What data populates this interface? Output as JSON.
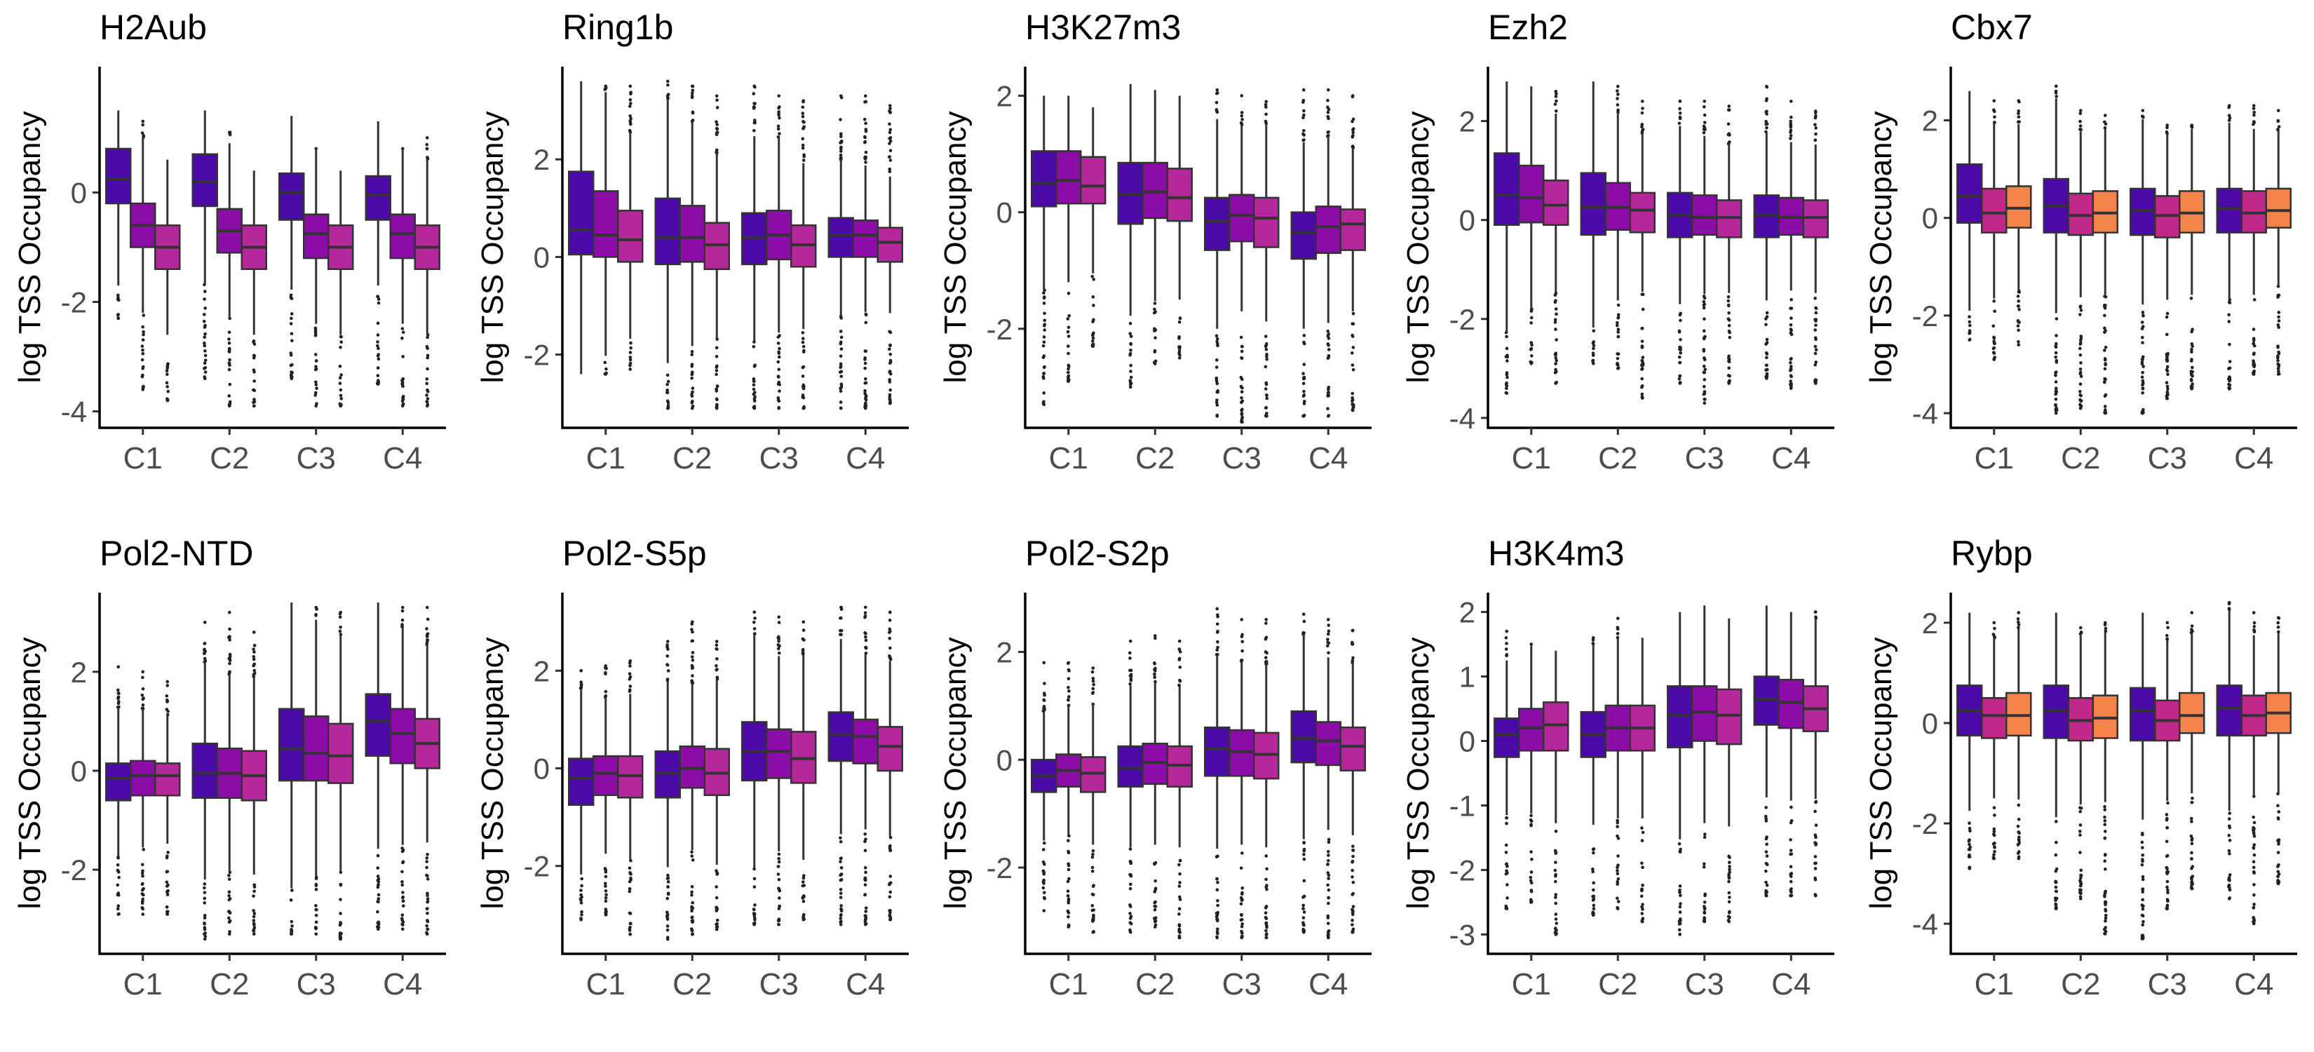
{
  "chart_data": [
    {
      "type": "box",
      "title": "H2Aub",
      "ylabel": "log TSS Occupancy",
      "ylim": [
        -4.3,
        2.3
      ],
      "yticks": [
        -4,
        -2,
        0
      ],
      "categories": [
        "C1",
        "C2",
        "C3",
        "C4"
      ],
      "box_colors": [
        "#4b0aa8",
        "#8c0ca8",
        "#b5289b"
      ],
      "boxes": [
        [
          [
            -2.3,
            -0.2,
            0.25,
            0.8,
            1.5
          ],
          [
            -3.6,
            -1.0,
            -0.6,
            -0.2,
            1.3
          ],
          [
            -3.8,
            -1.4,
            -1.0,
            -0.6,
            0.6
          ]
        ],
        [
          [
            -3.4,
            -0.25,
            0.2,
            0.7,
            1.5
          ],
          [
            -3.9,
            -1.1,
            -0.7,
            -0.3,
            1.1
          ],
          [
            -3.9,
            -1.4,
            -1.0,
            -0.6,
            0.4
          ]
        ],
        [
          [
            -3.4,
            -0.5,
            0.0,
            0.35,
            1.4
          ],
          [
            -3.9,
            -1.2,
            -0.75,
            -0.4,
            0.8
          ],
          [
            -3.9,
            -1.4,
            -1.0,
            -0.6,
            0.4
          ]
        ],
        [
          [
            -3.5,
            -0.5,
            -0.05,
            0.3,
            1.3
          ],
          [
            -3.9,
            -1.2,
            -0.75,
            -0.4,
            0.8
          ],
          [
            -3.9,
            -1.4,
            -1.0,
            -0.6,
            1.0
          ]
        ]
      ]
    },
    {
      "type": "box",
      "title": "Ring1b",
      "ylabel": "log TSS Occupancy",
      "ylim": [
        -3.5,
        3.9
      ],
      "yticks": [
        -2,
        0,
        2
      ],
      "categories": [
        "C1",
        "C2",
        "C3",
        "C4"
      ],
      "box_colors": [
        "#4b0aa8",
        "#8c0ca8",
        "#b5289b"
      ],
      "boxes": [
        [
          [
            -2.4,
            0.05,
            0.55,
            1.75,
            3.6
          ],
          [
            -2.4,
            0.0,
            0.45,
            1.35,
            3.5
          ],
          [
            -2.3,
            -0.1,
            0.35,
            0.95,
            3.5
          ]
        ],
        [
          [
            -3.1,
            -0.15,
            0.4,
            1.2,
            3.6
          ],
          [
            -3.1,
            -0.1,
            0.4,
            1.05,
            3.5
          ],
          [
            -3.1,
            -0.25,
            0.25,
            0.7,
            3.3
          ]
        ],
        [
          [
            -3.1,
            -0.15,
            0.4,
            0.9,
            3.5
          ],
          [
            -3.1,
            -0.05,
            0.45,
            0.95,
            3.3
          ],
          [
            -3.1,
            -0.2,
            0.25,
            0.65,
            3.2
          ]
        ],
        [
          [
            -3.1,
            0.0,
            0.45,
            0.8,
            3.3
          ],
          [
            -3.1,
            0.0,
            0.45,
            0.75,
            3.3
          ],
          [
            -3.0,
            -0.1,
            0.3,
            0.6,
            3.1
          ]
        ]
      ]
    },
    {
      "type": "box",
      "title": "H3K27m3",
      "ylabel": "log TSS Occupancy",
      "ylim": [
        -3.7,
        2.5
      ],
      "yticks": [
        -2,
        0,
        2
      ],
      "categories": [
        "C1",
        "C2",
        "C3",
        "C4"
      ],
      "box_colors": [
        "#4b0aa8",
        "#8c0ca8",
        "#b5289b"
      ],
      "boxes": [
        [
          [
            -3.3,
            0.1,
            0.5,
            1.05,
            2.0
          ],
          [
            -2.9,
            0.15,
            0.55,
            1.05,
            2.0
          ],
          [
            -2.3,
            0.15,
            0.45,
            0.95,
            1.8
          ]
        ],
        [
          [
            -3.0,
            -0.2,
            0.3,
            0.85,
            2.2
          ],
          [
            -2.6,
            -0.1,
            0.35,
            0.85,
            2.1
          ],
          [
            -2.5,
            -0.15,
            0.25,
            0.75,
            2.0
          ]
        ],
        [
          [
            -3.5,
            -0.65,
            -0.15,
            0.25,
            2.1
          ],
          [
            -3.6,
            -0.5,
            -0.05,
            0.3,
            2.0
          ],
          [
            -3.5,
            -0.6,
            -0.1,
            0.25,
            1.9
          ]
        ],
        [
          [
            -3.5,
            -0.8,
            -0.35,
            0.0,
            2.1
          ],
          [
            -3.5,
            -0.7,
            -0.25,
            0.1,
            2.1
          ],
          [
            -3.4,
            -0.65,
            -0.2,
            0.05,
            2.0
          ]
        ]
      ]
    },
    {
      "type": "box",
      "title": "Ezh2",
      "ylabel": "log TSS Occupancy",
      "ylim": [
        -4.2,
        3.1
      ],
      "yticks": [
        -4,
        -2,
        0,
        2
      ],
      "categories": [
        "C1",
        "C2",
        "C3",
        "C4"
      ],
      "box_colors": [
        "#4b0aa8",
        "#8c0ca8",
        "#b5289b"
      ],
      "boxes": [
        [
          [
            -3.5,
            -0.1,
            0.5,
            1.35,
            2.8
          ],
          [
            -2.9,
            -0.05,
            0.45,
            1.1,
            2.7
          ],
          [
            -3.3,
            -0.1,
            0.3,
            0.8,
            2.6
          ]
        ],
        [
          [
            -2.9,
            -0.3,
            0.25,
            0.95,
            2.8
          ],
          [
            -3.0,
            -0.2,
            0.25,
            0.75,
            2.7
          ],
          [
            -3.6,
            -0.25,
            0.2,
            0.55,
            2.4
          ]
        ],
        [
          [
            -3.3,
            -0.35,
            0.1,
            0.55,
            2.4
          ],
          [
            -3.7,
            -0.3,
            0.05,
            0.5,
            2.4
          ],
          [
            -3.3,
            -0.35,
            0.05,
            0.4,
            2.3
          ]
        ],
        [
          [
            -3.2,
            -0.35,
            0.1,
            0.5,
            2.7
          ],
          [
            -3.4,
            -0.3,
            0.05,
            0.45,
            2.4
          ],
          [
            -3.3,
            -0.35,
            0.05,
            0.4,
            2.2
          ]
        ]
      ]
    },
    {
      "type": "box",
      "title": "Cbx7",
      "ylabel": "log TSS Occupancy",
      "ylim": [
        -4.3,
        3.1
      ],
      "yticks": [
        -4,
        -2,
        0,
        2
      ],
      "categories": [
        "C1",
        "C2",
        "C3",
        "C4"
      ],
      "box_colors": [
        "#4b0aa8",
        "#c0288a",
        "#f4844a"
      ],
      "boxes": [
        [
          [
            -2.5,
            -0.1,
            0.45,
            1.1,
            2.6
          ],
          [
            -2.9,
            -0.3,
            0.1,
            0.6,
            2.4
          ],
          [
            -2.6,
            -0.2,
            0.2,
            0.65,
            2.4
          ]
        ],
        [
          [
            -4.0,
            -0.3,
            0.25,
            0.8,
            2.7
          ],
          [
            -3.9,
            -0.35,
            0.05,
            0.5,
            2.2
          ],
          [
            -4.0,
            -0.3,
            0.1,
            0.55,
            2.1
          ]
        ],
        [
          [
            -4.0,
            -0.35,
            0.15,
            0.6,
            2.2
          ],
          [
            -3.7,
            -0.4,
            0.05,
            0.45,
            1.9
          ],
          [
            -3.5,
            -0.3,
            0.1,
            0.55,
            1.9
          ]
        ],
        [
          [
            -3.5,
            -0.3,
            0.2,
            0.6,
            2.3
          ],
          [
            -3.2,
            -0.3,
            0.1,
            0.55,
            2.3
          ],
          [
            -3.2,
            -0.2,
            0.15,
            0.6,
            2.2
          ]
        ]
      ]
    },
    {
      "type": "box",
      "title": "Pol2-NTD",
      "ylabel": "log TSS Occupancy",
      "ylim": [
        -3.7,
        3.6
      ],
      "yticks": [
        -2,
        0,
        2
      ],
      "categories": [
        "C1",
        "C2",
        "C3",
        "C4"
      ],
      "box_colors": [
        "#4b0aa8",
        "#8c0ca8",
        "#b5289b"
      ],
      "boxes": [
        [
          [
            -2.9,
            -0.6,
            -0.15,
            0.15,
            2.1
          ],
          [
            -2.9,
            -0.5,
            -0.1,
            0.2,
            2.0
          ],
          [
            -2.9,
            -0.5,
            -0.1,
            0.15,
            1.8
          ]
        ],
        [
          [
            -3.4,
            -0.55,
            -0.05,
            0.55,
            3.0
          ],
          [
            -3.3,
            -0.55,
            -0.05,
            0.45,
            3.2
          ],
          [
            -3.3,
            -0.6,
            -0.1,
            0.4,
            2.8
          ]
        ],
        [
          [
            -3.3,
            -0.2,
            0.45,
            1.25,
            3.4
          ],
          [
            -3.3,
            -0.2,
            0.35,
            1.1,
            3.3
          ],
          [
            -3.4,
            -0.25,
            0.3,
            0.95,
            3.2
          ]
        ],
        [
          [
            -3.2,
            0.3,
            1.0,
            1.55,
            3.4
          ],
          [
            -3.2,
            0.15,
            0.75,
            1.25,
            3.3
          ],
          [
            -3.3,
            0.05,
            0.55,
            1.05,
            3.3
          ]
        ]
      ]
    },
    {
      "type": "box",
      "title": "Pol2-S5p",
      "ylabel": "log TSS Occupancy",
      "ylim": [
        -3.8,
        3.6
      ],
      "yticks": [
        -2,
        0,
        2
      ],
      "categories": [
        "C1",
        "C2",
        "C3",
        "C4"
      ],
      "box_colors": [
        "#4b0aa8",
        "#8c0ca8",
        "#b5289b"
      ],
      "boxes": [
        [
          [
            -3.1,
            -0.75,
            -0.2,
            0.2,
            2.0
          ],
          [
            -3.0,
            -0.55,
            -0.1,
            0.25,
            2.1
          ],
          [
            -3.4,
            -0.6,
            -0.15,
            0.25,
            2.2
          ]
        ],
        [
          [
            -3.5,
            -0.6,
            -0.1,
            0.35,
            2.6
          ],
          [
            -3.4,
            -0.4,
            0.0,
            0.45,
            3.0
          ],
          [
            -3.3,
            -0.55,
            -0.1,
            0.4,
            2.6
          ]
        ],
        [
          [
            -3.2,
            -0.25,
            0.35,
            0.95,
            3.2
          ],
          [
            -3.2,
            -0.2,
            0.35,
            0.8,
            3.1
          ],
          [
            -3.1,
            -0.3,
            0.2,
            0.75,
            3.0
          ]
        ],
        [
          [
            -3.2,
            0.15,
            0.7,
            1.15,
            3.3
          ],
          [
            -3.2,
            0.1,
            0.65,
            1.0,
            3.3
          ],
          [
            -3.1,
            -0.05,
            0.45,
            0.85,
            3.2
          ]
        ]
      ]
    },
    {
      "type": "box",
      "title": "Pol2-S2p",
      "ylabel": "log TSS Occupancy",
      "ylim": [
        -3.6,
        3.1
      ],
      "yticks": [
        -2,
        0,
        2
      ],
      "categories": [
        "C1",
        "C2",
        "C3",
        "C4"
      ],
      "box_colors": [
        "#4b0aa8",
        "#8c0ca8",
        "#b5289b"
      ],
      "boxes": [
        [
          [
            -2.8,
            -0.6,
            -0.3,
            0.0,
            1.8
          ],
          [
            -3.1,
            -0.5,
            -0.2,
            0.1,
            1.8
          ],
          [
            -3.2,
            -0.6,
            -0.25,
            0.05,
            1.7
          ]
        ],
        [
          [
            -3.2,
            -0.5,
            -0.15,
            0.25,
            2.2
          ],
          [
            -3.1,
            -0.45,
            -0.05,
            0.3,
            2.3
          ],
          [
            -3.3,
            -0.5,
            -0.1,
            0.25,
            2.2
          ]
        ],
        [
          [
            -3.3,
            -0.3,
            0.2,
            0.6,
            2.8
          ],
          [
            -3.3,
            -0.3,
            0.15,
            0.55,
            2.6
          ],
          [
            -3.3,
            -0.35,
            0.1,
            0.5,
            2.6
          ]
        ],
        [
          [
            -3.2,
            -0.05,
            0.4,
            0.9,
            2.7
          ],
          [
            -3.3,
            -0.1,
            0.35,
            0.7,
            2.6
          ],
          [
            -3.2,
            -0.2,
            0.25,
            0.6,
            2.4
          ]
        ]
      ]
    },
    {
      "type": "box",
      "title": "H3K4m3",
      "ylabel": "log TSS Occupancy",
      "ylim": [
        -3.3,
        2.3
      ],
      "yticks": [
        -3,
        -2,
        -1,
        0,
        1,
        2
      ],
      "categories": [
        "C1",
        "C2",
        "C3",
        "C4"
      ],
      "box_colors": [
        "#4b0aa8",
        "#8c0ca8",
        "#b5289b"
      ],
      "boxes": [
        [
          [
            -2.6,
            -0.25,
            0.1,
            0.35,
            1.7
          ],
          [
            -2.5,
            -0.15,
            0.2,
            0.5,
            1.5
          ],
          [
            -3.0,
            -0.15,
            0.25,
            0.6,
            1.4
          ]
        ],
        [
          [
            -2.7,
            -0.25,
            0.1,
            0.45,
            1.6
          ],
          [
            -2.6,
            -0.15,
            0.2,
            0.55,
            1.9
          ],
          [
            -2.8,
            -0.15,
            0.2,
            0.55,
            1.6
          ]
        ],
        [
          [
            -3.0,
            -0.1,
            0.4,
            0.85,
            2.0
          ],
          [
            -2.8,
            0.0,
            0.45,
            0.85,
            2.1
          ],
          [
            -2.8,
            -0.05,
            0.4,
            0.8,
            1.9
          ]
        ],
        [
          [
            -2.4,
            0.25,
            0.65,
            1.0,
            2.1
          ],
          [
            -2.4,
            0.2,
            0.6,
            0.95,
            2.0
          ],
          [
            -2.4,
            0.15,
            0.5,
            0.85,
            2.0
          ]
        ]
      ]
    },
    {
      "type": "box",
      "title": "Rybp",
      "ylabel": "log TSS Occupancy",
      "ylim": [
        -4.6,
        2.6
      ],
      "yticks": [
        -4,
        -2,
        0,
        2
      ],
      "categories": [
        "C1",
        "C2",
        "C3",
        "C4"
      ],
      "box_colors": [
        "#4b0aa8",
        "#c0288a",
        "#f4844a"
      ],
      "boxes": [
        [
          [
            -2.9,
            -0.25,
            0.25,
            0.75,
            2.2
          ],
          [
            -2.7,
            -0.3,
            0.15,
            0.5,
            2.0
          ],
          [
            -2.7,
            -0.25,
            0.15,
            0.6,
            2.2
          ]
        ],
        [
          [
            -3.7,
            -0.3,
            0.25,
            0.75,
            2.2
          ],
          [
            -3.5,
            -0.35,
            0.05,
            0.5,
            1.9
          ],
          [
            -4.2,
            -0.3,
            0.1,
            0.55,
            2.0
          ]
        ],
        [
          [
            -4.3,
            -0.35,
            0.25,
            0.7,
            2.2
          ],
          [
            -3.7,
            -0.35,
            0.05,
            0.45,
            2.0
          ],
          [
            -3.3,
            -0.2,
            0.15,
            0.6,
            2.2
          ]
        ],
        [
          [
            -3.5,
            -0.25,
            0.3,
            0.75,
            2.4
          ],
          [
            -4.0,
            -0.25,
            0.15,
            0.55,
            2.2
          ],
          [
            -3.2,
            -0.2,
            0.2,
            0.6,
            2.1
          ]
        ]
      ]
    }
  ]
}
